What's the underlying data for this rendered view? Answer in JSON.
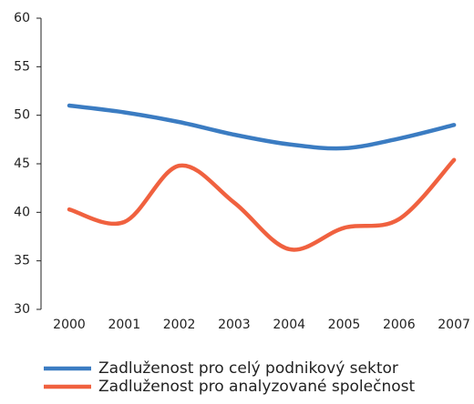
{
  "chart_data": {
    "type": "line",
    "categories": [
      "2000",
      "2001",
      "2002",
      "2003",
      "2004",
      "2005",
      "2006",
      "2007"
    ],
    "series": [
      {
        "name": "Zadluženost pro celý podnikový sektor",
        "color": "#3b7cc2",
        "values": [
          51,
          50.3,
          49.3,
          48,
          47,
          46.6,
          47.6,
          49
        ]
      },
      {
        "name": "Zadluženost pro analyzované společnost",
        "color": "#f0613f",
        "values": [
          40.3,
          39,
          44.8,
          41,
          36.2,
          38.4,
          39.3,
          45.4
        ]
      }
    ],
    "ylim": [
      30,
      60
    ],
    "yticks": [
      30,
      35,
      40,
      45,
      50,
      55,
      60
    ],
    "grid": false,
    "legend": "bottom"
  }
}
